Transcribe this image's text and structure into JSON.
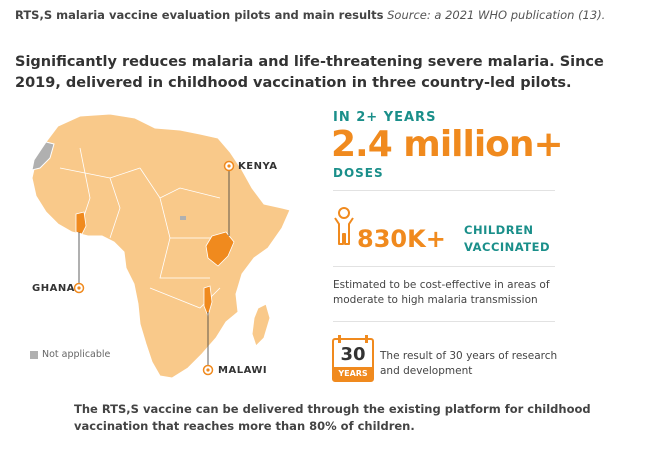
{
  "caption": {
    "title": "RTS,S malaria vaccine evaluation pilots and main results",
    "source": "Source: a 2021 WHO publication (13)."
  },
  "headline": "Significantly reduces malaria and life-threatening severe malaria. Since 2019, delivered in childhood vaccination in three country-led pilots.",
  "map": {
    "labels": {
      "kenya": "KENYA",
      "ghana": "GHANA",
      "malawi": "MALAWI"
    },
    "legend": "Not applicable",
    "colors": {
      "land": "#f9c98a",
      "pilot": "#f08a1e",
      "not_applicable": "#b0b0b0"
    }
  },
  "stats": {
    "years_label": "IN 2+ YEARS",
    "doses_value": "2.4 million+",
    "doses_label": "DOSES",
    "children_value": "830K+",
    "children_label_1": "CHILDREN",
    "children_label_2": "VACCINATED",
    "cost_note": "Estimated to be cost-effective in areas of moderate to high malaria transmission",
    "years_badge_number": "30",
    "years_badge_word": "YEARS",
    "research_note": "The result of 30 years of research and development"
  },
  "footer": "The RTS,S vaccine can be delivered through the existing platform for childhood vaccination that reaches more than 80% of children.",
  "colors": {
    "orange": "#f08a1e",
    "teal": "#1a8f8a"
  }
}
